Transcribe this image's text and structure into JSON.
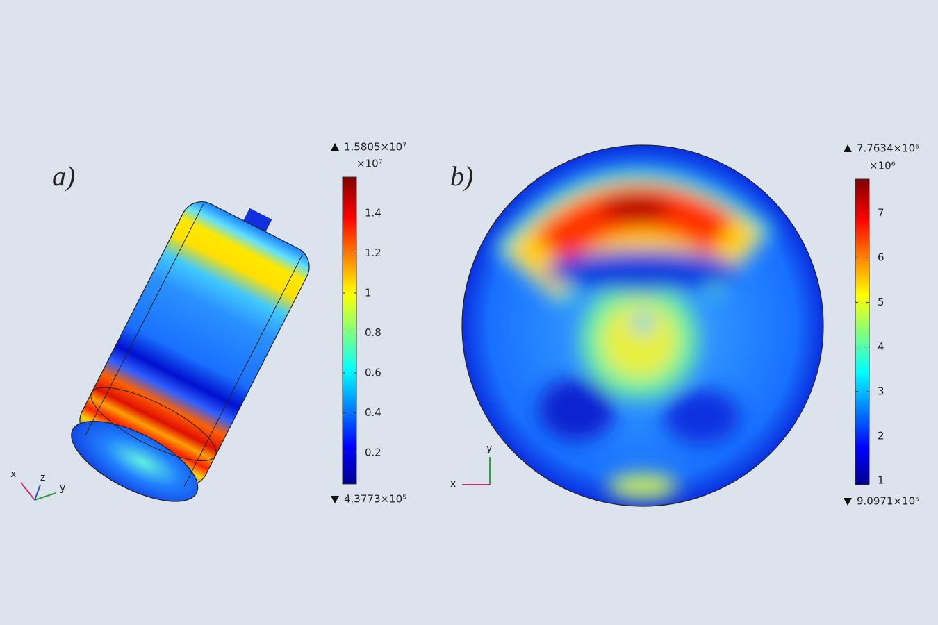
{
  "panels": [
    {
      "label": "a)",
      "max_label": "1.5805×10⁷",
      "multiplier": "×10⁷",
      "min_label": "4.3773×10⁵",
      "colorbar": {
        "lim": [
          0.043773,
          1.5805
        ],
        "ticks": [
          0.2,
          0.4,
          0.6,
          0.8,
          1,
          1.2,
          1.4
        ]
      },
      "axes": [
        "x",
        "z",
        "y"
      ]
    },
    {
      "label": "b)",
      "max_label": "7.7634×10⁶",
      "multiplier": "×10⁶",
      "min_label": "9.0971×10⁵",
      "colorbar": {
        "lim": [
          0.90971,
          7.7634
        ],
        "ticks": [
          1,
          2,
          3,
          4,
          5,
          6,
          7
        ]
      },
      "axes": [
        "y",
        "x"
      ]
    }
  ]
}
